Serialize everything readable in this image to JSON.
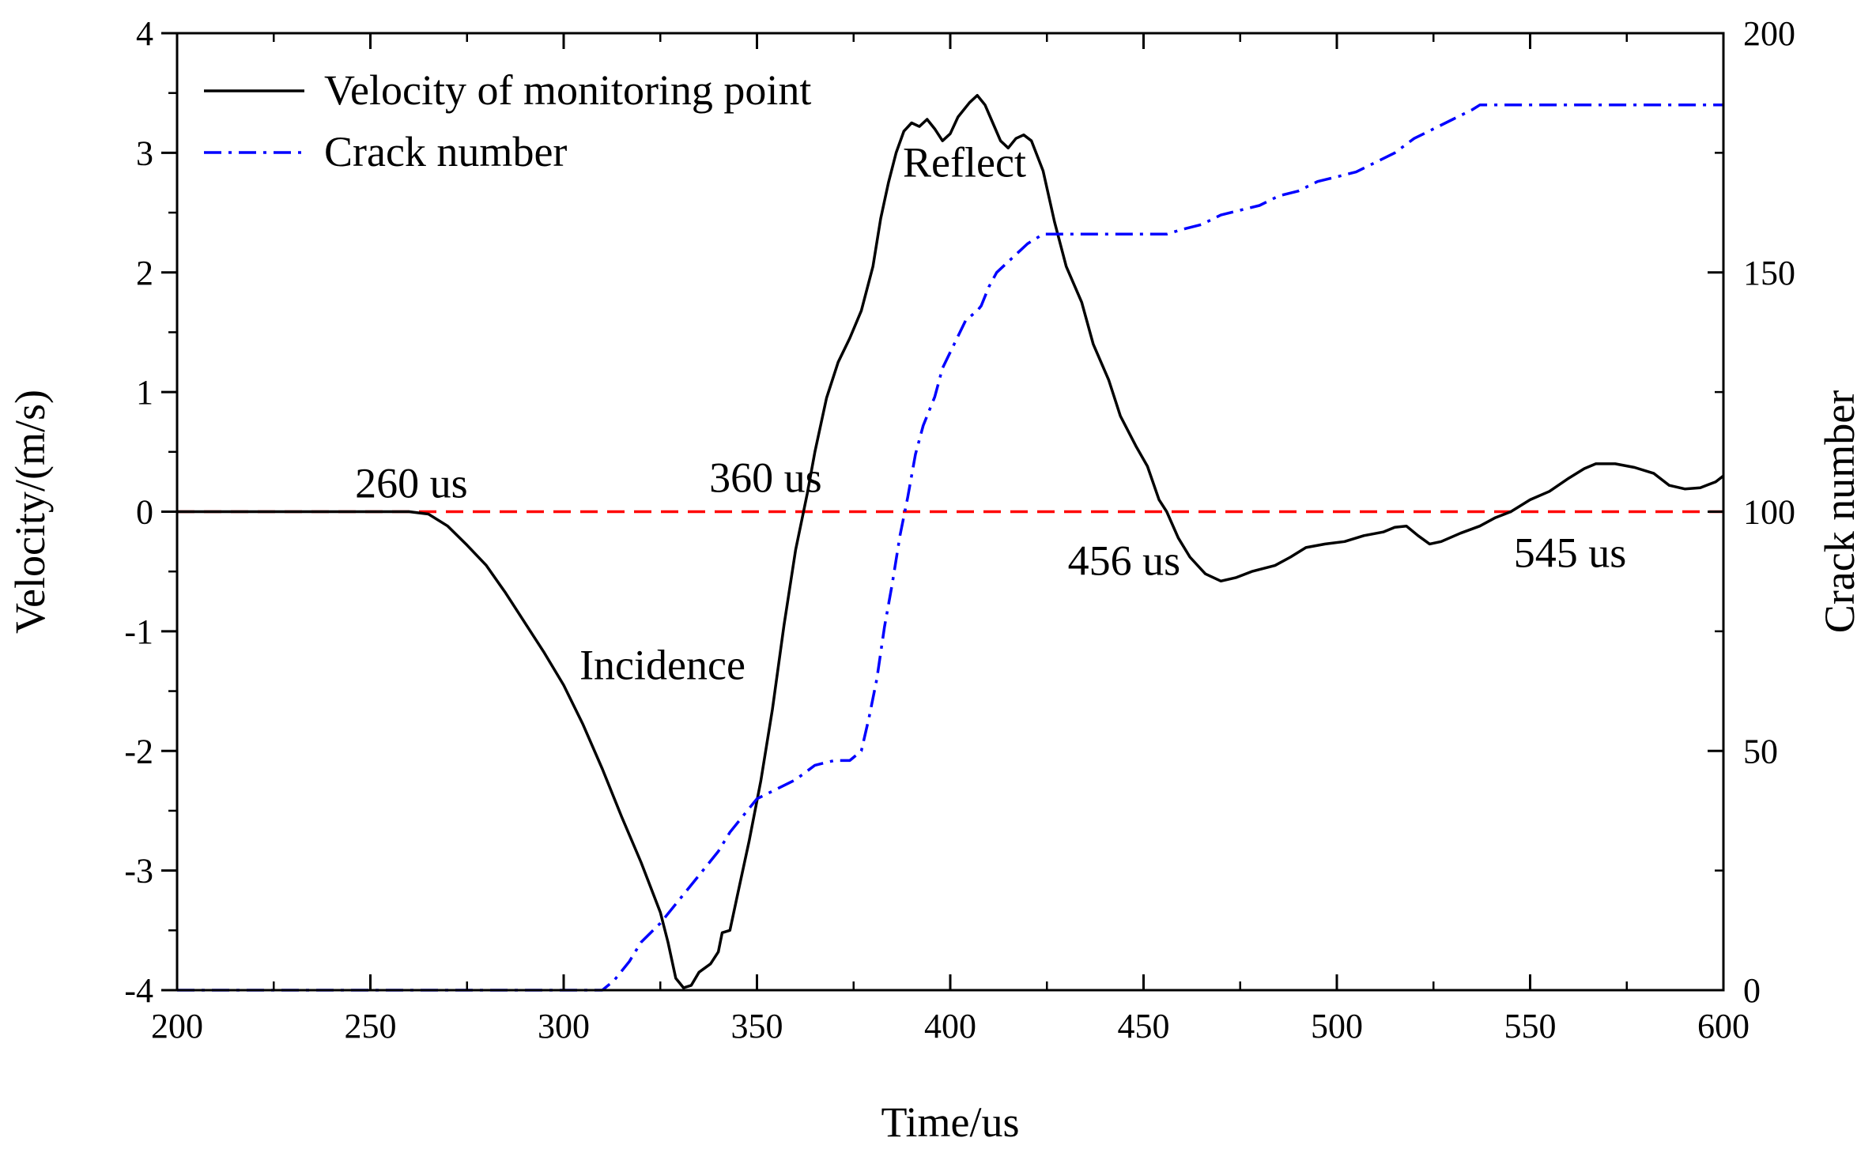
{
  "chart_data": {
    "type": "line",
    "xlabel": "Time/us",
    "ylabel_left": "Velocity/(m/s)",
    "ylabel_right": "Crack number",
    "xlim": [
      200,
      600
    ],
    "ylim_left": [
      -4,
      4
    ],
    "ylim_right": [
      0,
      200
    ],
    "x_ticks": [
      200,
      250,
      300,
      350,
      400,
      450,
      500,
      550,
      600
    ],
    "x_tick_labels": [
      "200",
      "250",
      "300",
      "350",
      "400",
      "450",
      "500",
      "550",
      "600"
    ],
    "y_left_ticks": [
      -4,
      -3,
      -2,
      -1,
      0,
      1,
      2,
      3,
      4
    ],
    "y_left_tick_labels": [
      "-4",
      "-3",
      "-2",
      "-1",
      "0",
      "1",
      "2",
      "3",
      "4"
    ],
    "y_right_ticks": [
      0,
      50,
      100,
      150,
      200
    ],
    "y_right_tick_labels": [
      "0",
      "50",
      "100",
      "150",
      "200"
    ],
    "grid": false,
    "legend_position": "top-left",
    "colors": {
      "velocity": "#000000",
      "crack": "#0000ff",
      "zero_line": "#ff0000"
    },
    "series": [
      {
        "name": "Velocity of monitoring point",
        "axis": "left",
        "style": "solid",
        "points": [
          [
            200,
            0
          ],
          [
            230,
            0
          ],
          [
            260,
            0
          ],
          [
            265,
            -0.02
          ],
          [
            270,
            -0.12
          ],
          [
            275,
            -0.28
          ],
          [
            280,
            -0.45
          ],
          [
            285,
            -0.68
          ],
          [
            290,
            -0.93
          ],
          [
            295,
            -1.18
          ],
          [
            300,
            -1.45
          ],
          [
            305,
            -1.78
          ],
          [
            310,
            -2.15
          ],
          [
            315,
            -2.55
          ],
          [
            320,
            -2.93
          ],
          [
            325,
            -3.35
          ],
          [
            327,
            -3.6
          ],
          [
            329,
            -3.9
          ],
          [
            331,
            -3.98
          ],
          [
            333,
            -3.96
          ],
          [
            335,
            -3.85
          ],
          [
            338,
            -3.78
          ],
          [
            340,
            -3.68
          ],
          [
            341,
            -3.52
          ],
          [
            343,
            -3.5
          ],
          [
            345,
            -3.2
          ],
          [
            348,
            -2.75
          ],
          [
            351,
            -2.25
          ],
          [
            354,
            -1.65
          ],
          [
            357,
            -0.95
          ],
          [
            360,
            -0.32
          ],
          [
            363,
            0.15
          ],
          [
            365,
            0.5
          ],
          [
            368,
            0.95
          ],
          [
            371,
            1.25
          ],
          [
            374,
            1.45
          ],
          [
            377,
            1.68
          ],
          [
            380,
            2.05
          ],
          [
            382,
            2.45
          ],
          [
            384,
            2.75
          ],
          [
            386,
            3.0
          ],
          [
            388,
            3.18
          ],
          [
            390,
            3.25
          ],
          [
            392,
            3.22
          ],
          [
            394,
            3.28
          ],
          [
            396,
            3.2
          ],
          [
            398,
            3.1
          ],
          [
            400,
            3.16
          ],
          [
            402,
            3.3
          ],
          [
            405,
            3.42
          ],
          [
            407,
            3.48
          ],
          [
            409,
            3.4
          ],
          [
            411,
            3.25
          ],
          [
            413,
            3.1
          ],
          [
            415,
            3.04
          ],
          [
            417,
            3.12
          ],
          [
            419,
            3.15
          ],
          [
            421,
            3.1
          ],
          [
            424,
            2.85
          ],
          [
            427,
            2.42
          ],
          [
            430,
            2.05
          ],
          [
            434,
            1.75
          ],
          [
            437,
            1.4
          ],
          [
            441,
            1.1
          ],
          [
            444,
            0.8
          ],
          [
            448,
            0.55
          ],
          [
            451,
            0.38
          ],
          [
            454,
            0.1
          ],
          [
            456,
            0.0
          ],
          [
            459,
            -0.22
          ],
          [
            462,
            -0.38
          ],
          [
            466,
            -0.52
          ],
          [
            470,
            -0.58
          ],
          [
            474,
            -0.55
          ],
          [
            478,
            -0.5
          ],
          [
            484,
            -0.45
          ],
          [
            488,
            -0.38
          ],
          [
            492,
            -0.3
          ],
          [
            497,
            -0.27
          ],
          [
            502,
            -0.25
          ],
          [
            507,
            -0.2
          ],
          [
            512,
            -0.17
          ],
          [
            515,
            -0.13
          ],
          [
            518,
            -0.12
          ],
          [
            521,
            -0.2
          ],
          [
            524,
            -0.27
          ],
          [
            527,
            -0.25
          ],
          [
            532,
            -0.18
          ],
          [
            537,
            -0.12
          ],
          [
            541,
            -0.05
          ],
          [
            545,
            0.0
          ],
          [
            550,
            0.1
          ],
          [
            555,
            0.17
          ],
          [
            560,
            0.28
          ],
          [
            564,
            0.36
          ],
          [
            567,
            0.4
          ],
          [
            572,
            0.4
          ],
          [
            577,
            0.37
          ],
          [
            582,
            0.32
          ],
          [
            586,
            0.22
          ],
          [
            590,
            0.19
          ],
          [
            594,
            0.2
          ],
          [
            598,
            0.25
          ],
          [
            600,
            0.3
          ]
        ]
      },
      {
        "name": "Crack number",
        "axis": "right",
        "style": "dashdot",
        "points": [
          [
            200,
            0
          ],
          [
            260,
            0
          ],
          [
            300,
            0
          ],
          [
            310,
            0
          ],
          [
            313,
            2
          ],
          [
            317,
            6
          ],
          [
            320,
            10
          ],
          [
            325,
            14
          ],
          [
            330,
            19
          ],
          [
            335,
            24
          ],
          [
            340,
            29
          ],
          [
            343,
            33
          ],
          [
            346,
            36
          ],
          [
            350,
            40
          ],
          [
            355,
            42
          ],
          [
            360,
            44
          ],
          [
            365,
            47
          ],
          [
            370,
            48
          ],
          [
            374,
            48
          ],
          [
            377,
            50
          ],
          [
            379,
            57
          ],
          [
            381,
            65
          ],
          [
            383,
            76
          ],
          [
            385,
            85
          ],
          [
            387,
            95
          ],
          [
            389,
            103
          ],
          [
            391,
            112
          ],
          [
            393,
            118
          ],
          [
            396,
            124
          ],
          [
            398,
            130
          ],
          [
            401,
            135
          ],
          [
            404,
            140
          ],
          [
            407,
            142
          ],
          [
            408,
            143
          ],
          [
            410,
            147
          ],
          [
            412,
            150
          ],
          [
            416,
            153
          ],
          [
            420,
            156
          ],
          [
            424,
            158
          ],
          [
            427,
            158
          ],
          [
            440,
            158
          ],
          [
            450,
            158
          ],
          [
            456,
            158
          ],
          [
            460,
            159
          ],
          [
            465,
            160
          ],
          [
            470,
            162
          ],
          [
            475,
            163
          ],
          [
            480,
            164
          ],
          [
            485,
            166
          ],
          [
            490,
            167
          ],
          [
            495,
            169
          ],
          [
            500,
            170
          ],
          [
            505,
            171
          ],
          [
            510,
            173
          ],
          [
            515,
            175
          ],
          [
            520,
            178
          ],
          [
            525,
            180
          ],
          [
            530,
            182
          ],
          [
            535,
            184
          ],
          [
            537,
            185
          ],
          [
            545,
            185
          ],
          [
            560,
            185
          ],
          [
            580,
            185
          ],
          [
            600,
            185
          ]
        ]
      }
    ],
    "zero_reference": {
      "y": 0,
      "style": "dashed"
    },
    "annotations": [
      {
        "text": "260 us",
        "x": 260,
        "y": 0
      },
      {
        "text": "360 us",
        "x": 360,
        "y": 0
      },
      {
        "text": "456 us",
        "x": 456,
        "y": 0
      },
      {
        "text": "545 us",
        "x": 545,
        "y": 0
      },
      {
        "text": "Incidence",
        "x": 300,
        "y": -1.4
      },
      {
        "text": "Reflect",
        "x": 400,
        "y": 2.8
      }
    ]
  }
}
